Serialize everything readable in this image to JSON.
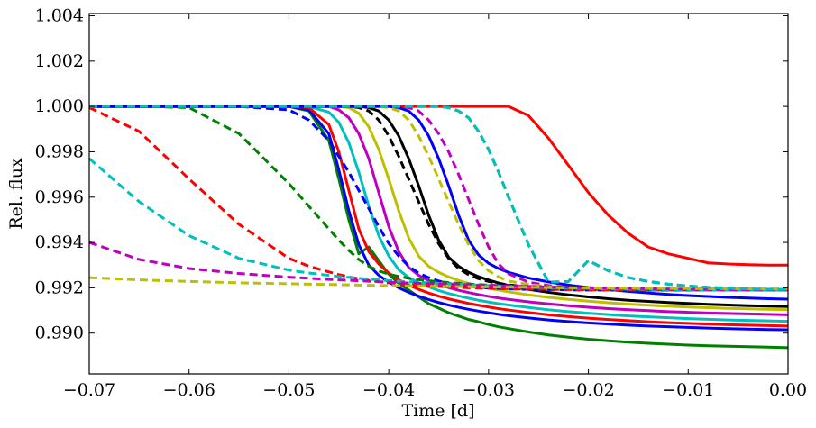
{
  "chart_data": {
    "type": "line",
    "title": "",
    "xlabel": "Time [d]",
    "ylabel": "Rel. flux",
    "xlim": [
      -0.07,
      0.0
    ],
    "ylim": [
      0.9882,
      1.0041
    ],
    "grid": false,
    "legend": "none",
    "x_ticks": [
      -0.07,
      -0.06,
      -0.05,
      -0.04,
      -0.03,
      -0.02,
      -0.01,
      0.0
    ],
    "x_tick_labels": [
      "−0.07",
      "−0.06",
      "−0.05",
      "−0.04",
      "−0.03",
      "−0.02",
      "−0.01",
      "0.00"
    ],
    "y_ticks": [
      0.99,
      0.992,
      0.994,
      0.996,
      0.998,
      1.0,
      1.002,
      1.004
    ],
    "y_tick_labels": [
      "0.990",
      "0.992",
      "0.994",
      "0.996",
      "0.998",
      "1.000",
      "1.002",
      "1.004"
    ],
    "x": [
      -0.07,
      -0.065,
      -0.06,
      -0.055,
      -0.05,
      -0.048,
      -0.046,
      -0.045,
      -0.044,
      -0.043,
      -0.042,
      -0.041,
      -0.04,
      -0.039,
      -0.038,
      -0.037,
      -0.036,
      -0.035,
      -0.034,
      -0.033,
      -0.032,
      -0.031,
      -0.03,
      -0.029,
      -0.028,
      -0.026,
      -0.024,
      -0.022,
      -0.02,
      -0.018,
      -0.016,
      -0.014,
      -0.012,
      -0.01,
      -0.008,
      -0.006,
      -0.004,
      -0.002,
      0.0
    ],
    "series": [
      {
        "name": "solid-red-late",
        "color": "#ff0000",
        "dash": "solid",
        "values": [
          1.0,
          1.0,
          1.0,
          1.0,
          1.0,
          1.0,
          1.0,
          1.0,
          1.0,
          1.0,
          1.0,
          1.0,
          1.0,
          1.0,
          1.0,
          1.0,
          1.0,
          1.0,
          1.0,
          1.0,
          1.0,
          1.0,
          1.0,
          1.0,
          1.0,
          0.9996,
          0.9986,
          0.9974,
          0.9962,
          0.9952,
          0.9944,
          0.9938,
          0.9935,
          0.9933,
          0.9931,
          0.99305,
          0.99302,
          0.993,
          0.993
        ]
      },
      {
        "name": "solid-green-1",
        "color": "#008000",
        "dash": "solid",
        "values": [
          1.0,
          1.0,
          1.0,
          1.0,
          1.0,
          0.9998,
          0.9985,
          0.9968,
          0.995,
          0.9935,
          0.9938,
          0.9932,
          0.9926,
          0.9922,
          0.9919,
          0.9916,
          0.9913,
          0.9911,
          0.9909,
          0.99075,
          0.9906,
          0.9905,
          0.99038,
          0.99028,
          0.9902,
          0.99005,
          0.98992,
          0.98982,
          0.98973,
          0.98966,
          0.9896,
          0.98955,
          0.98951,
          0.98947,
          0.98944,
          0.98942,
          0.9894,
          0.98938,
          0.98936
        ]
      },
      {
        "name": "solid-blue-1",
        "color": "#0000ff",
        "dash": "solid",
        "values": [
          1.0,
          1.0,
          1.0,
          1.0,
          1.0,
          0.99985,
          0.9988,
          0.9972,
          0.9954,
          0.9939,
          0.993,
          0.99255,
          0.99225,
          0.992,
          0.9918,
          0.99163,
          0.99148,
          0.99135,
          0.99124,
          0.99114,
          0.99105,
          0.99097,
          0.9909,
          0.99083,
          0.99077,
          0.99067,
          0.99058,
          0.99051,
          0.99045,
          0.9904,
          0.99035,
          0.99031,
          0.99028,
          0.99025,
          0.99022,
          0.9902,
          0.99018,
          0.99016,
          0.99015
        ]
      },
      {
        "name": "solid-red-1",
        "color": "#ff0000",
        "dash": "solid",
        "values": [
          1.0,
          1.0,
          1.0,
          1.0,
          1.0,
          0.99995,
          0.9992,
          0.998,
          0.9963,
          0.9946,
          0.9936,
          0.99305,
          0.99265,
          0.99235,
          0.99212,
          0.99193,
          0.99177,
          0.99163,
          0.99151,
          0.99141,
          0.99131,
          0.99123,
          0.99115,
          0.99108,
          0.99102,
          0.99091,
          0.99081,
          0.99073,
          0.99066,
          0.9906,
          0.99055,
          0.9905,
          0.99046,
          0.99043,
          0.9904,
          0.99037,
          0.99035,
          0.99033,
          0.99031
        ]
      },
      {
        "name": "solid-cyan-1",
        "color": "#00bfbf",
        "dash": "solid",
        "values": [
          1.0,
          1.0,
          1.0,
          1.0,
          1.0,
          1.0,
          0.99975,
          0.9993,
          0.9984,
          0.9971,
          0.9956,
          0.9943,
          0.9934,
          0.9928,
          0.99245,
          0.99222,
          0.99204,
          0.99188,
          0.99175,
          0.99164,
          0.99154,
          0.99145,
          0.99137,
          0.9913,
          0.99124,
          0.99113,
          0.99103,
          0.99095,
          0.99088,
          0.99082,
          0.99076,
          0.99072,
          0.99068,
          0.99064,
          0.99061,
          0.99058,
          0.99056,
          0.99054,
          0.99052
        ]
      },
      {
        "name": "solid-magenta-1",
        "color": "#bf00bf",
        "dash": "solid",
        "values": [
          1.0,
          1.0,
          1.0,
          1.0,
          1.0,
          1.0,
          1.0,
          0.99985,
          0.9995,
          0.9988,
          0.9977,
          0.9962,
          0.9947,
          0.9936,
          0.9929,
          0.99255,
          0.99232,
          0.99215,
          0.99201,
          0.99189,
          0.99179,
          0.9917,
          0.99162,
          0.99155,
          0.99149,
          0.99138,
          0.99129,
          0.99121,
          0.99114,
          0.99108,
          0.99103,
          0.99099,
          0.99095,
          0.99092,
          0.99089,
          0.99087,
          0.99085,
          0.99083,
          0.99081
        ]
      },
      {
        "name": "solid-olive-1",
        "color": "#bfbf00",
        "dash": "solid",
        "values": [
          1.0,
          1.0,
          1.0,
          1.0,
          1.0,
          1.0,
          1.0,
          1.0,
          0.99995,
          0.9997,
          0.9991,
          0.9981,
          0.9968,
          0.9954,
          0.9942,
          0.9934,
          0.99295,
          0.99268,
          0.99248,
          0.99232,
          0.99219,
          0.99208,
          0.99198,
          0.9919,
          0.99182,
          0.99169,
          0.99158,
          0.99149,
          0.99141,
          0.99134,
          0.99128,
          0.99123,
          0.99119,
          0.99115,
          0.99112,
          0.99109,
          0.99107,
          0.99105,
          0.99103
        ]
      },
      {
        "name": "solid-black-1",
        "color": "#000000",
        "dash": "solid",
        "values": [
          1.0,
          1.0,
          1.0,
          1.0,
          1.0,
          1.0,
          1.0,
          1.0,
          1.0,
          1.0,
          0.99995,
          0.9998,
          0.9994,
          0.9987,
          0.9977,
          0.9965,
          0.9952,
          0.9941,
          0.99335,
          0.99295,
          0.99268,
          0.99249,
          0.99234,
          0.99221,
          0.9921,
          0.99193,
          0.9918,
          0.99169,
          0.9916,
          0.99152,
          0.99145,
          0.9914,
          0.99135,
          0.99131,
          0.99127,
          0.99124,
          0.99121,
          0.99119,
          0.99117
        ]
      },
      {
        "name": "solid-blue-2",
        "color": "#0000ff",
        "dash": "solid",
        "values": [
          1.0,
          1.0,
          1.0,
          1.0,
          1.0,
          1.0,
          1.0,
          1.0,
          1.0,
          1.0,
          1.0,
          1.0,
          1.0,
          0.99995,
          0.9998,
          0.9994,
          0.9987,
          0.9977,
          0.9965,
          0.9952,
          0.9941,
          0.99345,
          0.99308,
          0.99285,
          0.99268,
          0.99243,
          0.99226,
          0.99212,
          0.99201,
          0.99192,
          0.99184,
          0.99177,
          0.99171,
          0.99166,
          0.99162,
          0.99158,
          0.99155,
          0.99152,
          0.9915
        ]
      },
      {
        "name": "dash-magenta-late",
        "color": "#bf00bf",
        "dash": "dash",
        "values": [
          1.0,
          1.0,
          1.0,
          1.0,
          1.0,
          1.0,
          1.0,
          1.0,
          1.0,
          1.0,
          1.0,
          1.0,
          1.0,
          1.0,
          0.99995,
          0.9998,
          0.9994,
          0.9988,
          0.998,
          0.997,
          0.9959,
          0.9948,
          0.9938,
          0.99305,
          0.99262,
          0.99225,
          0.9921,
          0.992,
          0.99195,
          0.99193,
          0.99192,
          0.99191,
          0.9919,
          0.9919,
          0.9919,
          0.9919,
          0.9919,
          0.9919,
          0.9919
        ]
      },
      {
        "name": "dash-olive-mid",
        "color": "#bfbf00",
        "dash": "dash",
        "values": [
          1.0,
          1.0,
          1.0,
          1.0,
          1.0,
          1.0,
          1.0,
          1.0,
          1.0,
          1.0,
          1.0,
          1.0,
          0.99995,
          0.9998,
          0.9994,
          0.9987,
          0.9978,
          0.9968,
          0.9958,
          0.9948,
          0.9939,
          0.9932,
          0.99275,
          0.99248,
          0.9923,
          0.99215,
          0.99205,
          0.99198,
          0.99194,
          0.99192,
          0.99191,
          0.9919,
          0.9919,
          0.9919,
          0.9919,
          0.9919,
          0.9919,
          0.9919,
          0.9919
        ]
      },
      {
        "name": "dash-black-mid",
        "color": "#000000",
        "dash": "dash",
        "values": [
          1.0,
          1.0,
          1.0,
          1.0,
          1.0,
          1.0,
          1.0,
          1.0,
          1.0,
          0.99995,
          0.9998,
          0.9994,
          0.9987,
          0.9978,
          0.9968,
          0.9958,
          0.9948,
          0.99395,
          0.9933,
          0.99285,
          0.99258,
          0.9924,
          0.99228,
          0.9922,
          0.99213,
          0.99204,
          0.99198,
          0.99195,
          0.99192,
          0.99191,
          0.9919,
          0.9919,
          0.9919,
          0.9919,
          0.9919,
          0.9919,
          0.9919,
          0.9919,
          0.9919
        ]
      },
      {
        "name": "dash-blue-mid",
        "color": "#0000ff",
        "dash": "dash",
        "values": [
          1.0,
          1.0,
          1.0,
          1.0,
          0.99985,
          0.9994,
          0.9985,
          0.9978,
          0.9971,
          0.9963,
          0.9955,
          0.9947,
          0.99395,
          0.9934,
          0.99295,
          0.99265,
          0.99245,
          0.9923,
          0.9922,
          0.99212,
          0.99206,
          0.99202,
          0.99199,
          0.99197,
          0.99195,
          0.99193,
          0.99192,
          0.99191,
          0.9919,
          0.9919,
          0.9919,
          0.9919,
          0.9919,
          0.9919,
          0.9919,
          0.9919,
          0.9919,
          0.9919,
          0.9919
        ]
      },
      {
        "name": "dash-green-early",
        "color": "#008000",
        "dash": "dash",
        "values": [
          1.0,
          1.0,
          0.99995,
          0.9988,
          0.9966,
          0.9956,
          0.9946,
          0.9941,
          0.99365,
          0.99325,
          0.99295,
          0.99275,
          0.9926,
          0.9925,
          0.99242,
          0.99236,
          0.99231,
          0.99227,
          0.99223,
          0.9922,
          0.99217,
          0.99214,
          0.99212,
          0.9921,
          0.99208,
          0.99205,
          0.99202,
          0.992,
          0.99198,
          0.99196,
          0.99195,
          0.99194,
          0.99193,
          0.99192,
          0.99191,
          0.9919,
          0.9919,
          0.9919,
          0.9919
        ]
      },
      {
        "name": "dash-red-early",
        "color": "#ff0000",
        "dash": "dash",
        "values": [
          0.99995,
          0.9989,
          0.9968,
          0.9948,
          0.9933,
          0.99295,
          0.9927,
          0.99258,
          0.99248,
          0.9924,
          0.99233,
          0.99227,
          0.99222,
          0.99218,
          0.99214,
          0.99211,
          0.99208,
          0.99206,
          0.99204,
          0.99202,
          0.992,
          0.99199,
          0.99198,
          0.99197,
          0.99196,
          0.99194,
          0.99193,
          0.99192,
          0.99191,
          0.9919,
          0.9919,
          0.9919,
          0.9919,
          0.9919,
          0.9919,
          0.9919,
          0.9919,
          0.9919,
          0.9919
        ]
      },
      {
        "name": "dash-cyan-earliest",
        "color": "#00bfbf",
        "dash": "dash",
        "values": [
          0.9977,
          0.9958,
          0.9943,
          0.9933,
          0.99278,
          0.99265,
          0.99255,
          0.9925,
          0.99246,
          0.99242,
          0.99238,
          0.99235,
          0.99232,
          0.99229,
          0.99226,
          0.99224,
          0.99222,
          0.9922,
          0.99218,
          0.99216,
          0.99214,
          0.99212,
          0.9921,
          0.99208,
          0.99206,
          0.99203,
          0.99201,
          0.99199,
          0.99197,
          0.99195,
          0.99194,
          0.99193,
          0.99192,
          0.99191,
          0.9919,
          0.9919,
          0.9919,
          0.9919,
          0.9919
        ]
      },
      {
        "name": "dash-magenta-earliest",
        "color": "#bf00bf",
        "dash": "dash",
        "values": [
          0.994,
          0.99325,
          0.99285,
          0.99263,
          0.99247,
          0.99242,
          0.99237,
          0.99235,
          0.99233,
          0.99231,
          0.99229,
          0.99227,
          0.99225,
          0.99223,
          0.99221,
          0.9922,
          0.99218,
          0.99217,
          0.99215,
          0.99214,
          0.99213,
          0.99211,
          0.9921,
          0.99209,
          0.99208,
          0.99206,
          0.99204,
          0.99202,
          0.992,
          0.99199,
          0.99197,
          0.99196,
          0.99195,
          0.99194,
          0.99193,
          0.99192,
          0.99191,
          0.9919,
          0.9919
        ]
      },
      {
        "name": "dash-olive-flat",
        "color": "#bfbf00",
        "dash": "dash",
        "values": [
          0.99245,
          0.99235,
          0.99228,
          0.99222,
          0.99218,
          0.99216,
          0.99215,
          0.99214,
          0.99213,
          0.99212,
          0.99211,
          0.9921,
          0.9921,
          0.99209,
          0.99208,
          0.99208,
          0.99207,
          0.99206,
          0.99206,
          0.99205,
          0.99205,
          0.99204,
          0.99204,
          0.99203,
          0.99203,
          0.99202,
          0.99201,
          0.992,
          0.992,
          0.99199,
          0.99198,
          0.99198,
          0.99197,
          0.99197,
          0.99196,
          0.99196,
          0.99196,
          0.99195,
          0.99195
        ]
      },
      {
        "name": "dash-green-late",
        "color": "#008000",
        "dash": "dash",
        "values": [
          1.0,
          1.0,
          1.0,
          1.0,
          1.0,
          1.0,
          1.0,
          1.0,
          1.0,
          1.0,
          1.0,
          1.0,
          1.0,
          1.0,
          1.0,
          1.0,
          1.0,
          1.0,
          0.99995,
          0.9998,
          0.9995,
          0.9989,
          0.9981,
          0.9971,
          0.996,
          0.9939,
          0.99225,
          0.99228,
          0.9932,
          0.99275,
          0.99245,
          0.99228,
          0.99216,
          0.99208,
          0.99202,
          0.99198,
          0.99195,
          0.99193,
          0.99192
        ]
      },
      {
        "name": "dash-cyan-late",
        "color": "#00bfbf",
        "dash": "dash",
        "values": [
          1.0,
          1.0,
          1.0,
          1.0,
          1.0,
          1.0,
          1.0,
          1.0,
          1.0,
          1.0,
          1.0,
          1.0,
          1.0,
          1.0,
          1.0,
          1.0,
          1.0,
          1.0,
          0.99995,
          0.9998,
          0.9995,
          0.9989,
          0.9981,
          0.9971,
          0.996,
          0.9939,
          0.99225,
          0.99228,
          0.9932,
          0.99275,
          0.99245,
          0.99228,
          0.99216,
          0.99208,
          0.99202,
          0.99198,
          0.99195,
          0.99193,
          0.99192
        ]
      }
    ]
  }
}
